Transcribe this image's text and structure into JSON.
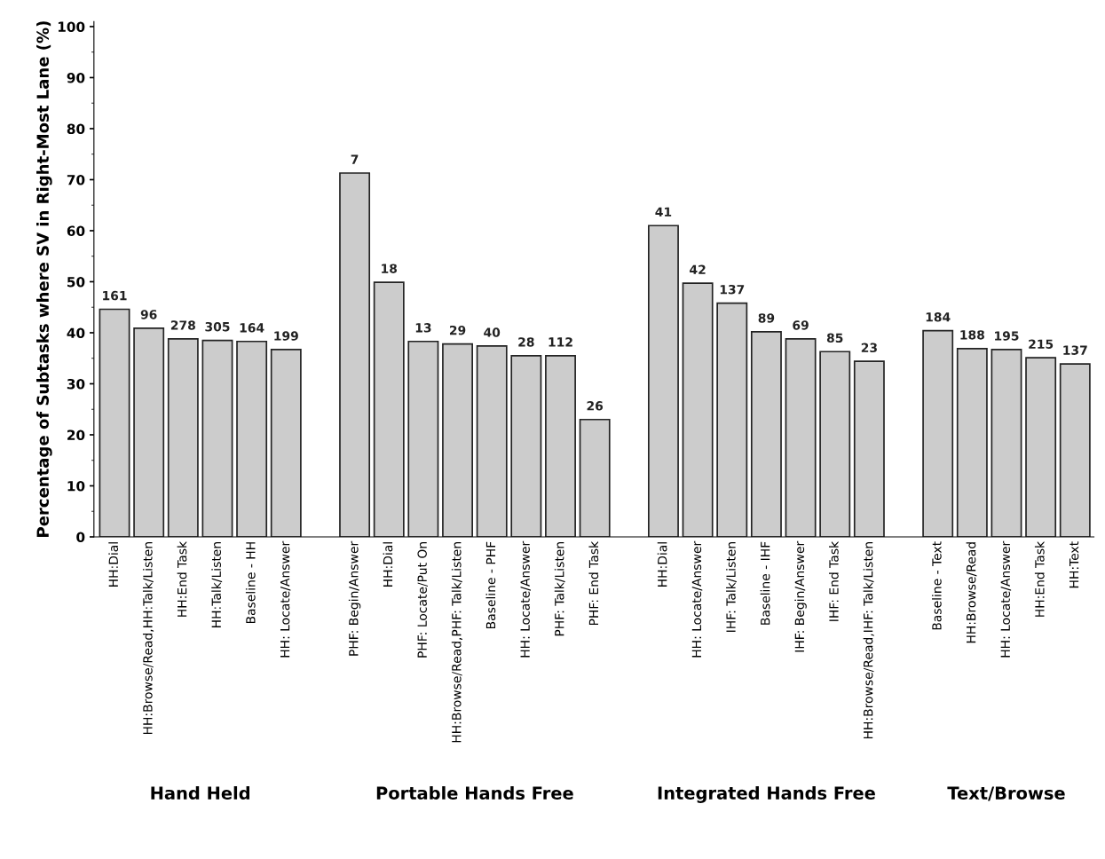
{
  "chart_data": {
    "type": "bar",
    "ylabel": "Percentage of Subtasks where SV in Right-Most Lane (%)",
    "categories": [
      "HH:Dial",
      "HH:Browse/Read,HH:Talk/Listen",
      "HH:End Task",
      "HH:Talk/Listen",
      "Baseline - HH",
      "HH: Locate/Answer",
      null,
      "PHF: Begin/Answer",
      "HH:Dial",
      "PHF: Locate/Put On",
      "HH:Browse/Read,PHF: Talk/Listen",
      "Baseline - PHF",
      "HH: Locate/Answer",
      "PHF: Talk/Listen",
      "PHF: End Task",
      null,
      "HH:Dial",
      "HH: Locate/Answer",
      "IHF: Talk/Listen",
      "Baseline - IHF",
      "IHF: Begin/Answer",
      "IHF: End Task",
      "HH:Browse/Read,IHF: Talk/Listen",
      null,
      "Baseline - Text",
      "HH:Browse/Read",
      "HH: Locate/Answer",
      "HH:End Task",
      "HH:Text"
    ],
    "values": [
      44.6,
      40.9,
      38.8,
      38.5,
      38.3,
      36.7,
      null,
      71.3,
      49.9,
      38.3,
      37.8,
      37.4,
      35.5,
      35.5,
      23.0,
      null,
      61.0,
      49.7,
      45.8,
      40.2,
      38.8,
      36.3,
      34.4,
      null,
      40.4,
      36.9,
      36.7,
      35.1,
      33.9
    ],
    "color": "#cccccc",
    "ylim": [
      0,
      101
    ],
    "yticks": [
      0,
      10,
      20,
      30,
      40,
      50,
      60,
      70,
      80,
      90,
      100
    ],
    "grid": false,
    "legend": false,
    "annotations": [
      "Hand Held",
      "Portable Hands Free",
      "Integrated Hands Free",
      "Text/Browse",
      "161",
      "96",
      "278",
      "305",
      "164",
      "199",
      "7",
      "18",
      "13",
      "29",
      "40",
      "28",
      "112",
      "26",
      "41",
      "42",
      "137",
      "89",
      "69",
      "85",
      "23",
      "184",
      "188",
      "195",
      "215",
      "137"
    ]
  }
}
